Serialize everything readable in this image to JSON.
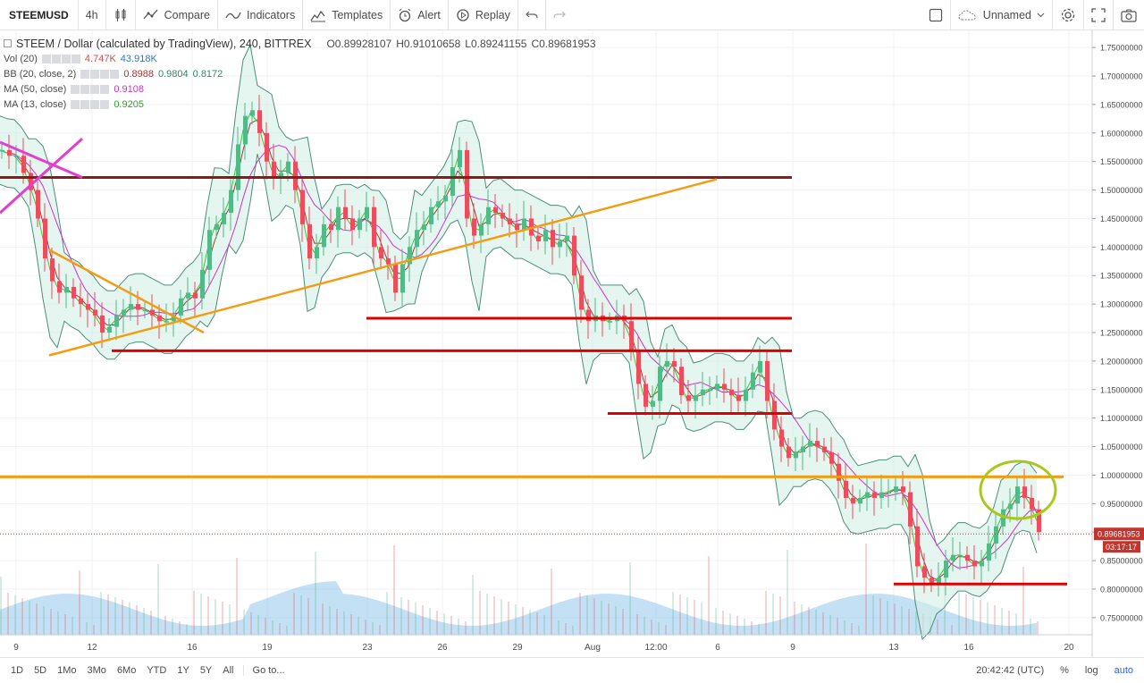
{
  "toolbar": {
    "symbol": "STEEMUSD",
    "interval": "4h",
    "compare_label": "Compare",
    "indicators_label": "Indicators",
    "templates_label": "Templates",
    "alert_label": "Alert",
    "replay_label": "Replay",
    "layout_name": "Unnamed"
  },
  "legend": {
    "title": "STEEM / Dollar (calculated by TradingView), 240, BITTREX",
    "ohlc": {
      "o": "O0.89928107",
      "h": "H0.91010658",
      "l": "L0.89241155",
      "c": "C0.89681953"
    },
    "vol": {
      "label": "Vol (20)",
      "v1": "4.747K",
      "v2": "43.918K"
    },
    "bb": {
      "label": "BB (20, close, 2)",
      "v1": "0.8988",
      "v2": "0.9804",
      "v3": "0.8172"
    },
    "ma50": {
      "label": "MA (50, close)",
      "v": "0.9108"
    },
    "ma13": {
      "label": "MA (13, close)",
      "v": "0.9205"
    }
  },
  "bottombar": {
    "ranges": [
      "1D",
      "5D",
      "1Mo",
      "3Mo",
      "6Mo",
      "YTD",
      "1Y",
      "5Y",
      "All"
    ],
    "goto": "Go to...",
    "time": "20:42:42 (UTC)",
    "percent": "%",
    "log": "log",
    "auto": "auto"
  },
  "chart_data": {
    "type": "candlestick",
    "title": "STEEM / Dollar (calculated by TradingView), 240, BITTREX",
    "ylim": [
      0.72,
      1.78
    ],
    "y_ticks": [
      "1.75000000",
      "1.70000000",
      "1.65000000",
      "1.60000000",
      "1.55000000",
      "1.50000000",
      "1.45000000",
      "1.40000000",
      "1.35000000",
      "1.30000000",
      "1.25000000",
      "1.20000000",
      "1.15000000",
      "1.10000000",
      "1.05000000",
      "1.00000000",
      "0.95000000",
      "0.90000000",
      "0.85000000",
      "0.80000000",
      "0.75000000"
    ],
    "x_ticks": [
      "9",
      "12",
      "16",
      "19",
      "23",
      "26",
      "29",
      "Aug",
      "12:00",
      "6",
      "9",
      "13",
      "16",
      "20"
    ],
    "last_price": "0.89681953",
    "countdown": "03:17:17",
    "colors": {
      "up": "#53b987",
      "down": "#eb4d5c",
      "bb_line": "#4a8f7a",
      "bb_fill": "#d3eee6",
      "ma50": "#cc33cc",
      "ma13": "#33cc33",
      "volume": "#7bbbe8",
      "support": "#dd0000",
      "resistance": "#8b1a1a",
      "trend": "#f39c12",
      "circle": "#a8c81c",
      "cross": "#e040d0"
    },
    "price_path": [
      [
        0,
        1.57
      ],
      [
        8,
        1.56
      ],
      [
        16,
        1.56
      ],
      [
        24,
        1.53
      ],
      [
        32,
        1.5
      ],
      [
        40,
        1.45
      ],
      [
        48,
        1.38
      ],
      [
        56,
        1.34
      ],
      [
        64,
        1.32
      ],
      [
        72,
        1.33
      ],
      [
        80,
        1.31
      ],
      [
        88,
        1.3
      ],
      [
        96,
        1.29
      ],
      [
        104,
        1.28
      ],
      [
        112,
        1.25
      ],
      [
        120,
        1.26
      ],
      [
        128,
        1.28
      ],
      [
        136,
        1.29
      ],
      [
        144,
        1.3
      ],
      [
        152,
        1.29
      ],
      [
        160,
        1.29
      ],
      [
        168,
        1.28
      ],
      [
        176,
        1.27
      ],
      [
        184,
        1.27
      ],
      [
        192,
        1.28
      ],
      [
        200,
        1.31
      ],
      [
        208,
        1.32
      ],
      [
        216,
        1.31
      ],
      [
        224,
        1.36
      ],
      [
        232,
        1.43
      ],
      [
        240,
        1.44
      ],
      [
        248,
        1.46
      ],
      [
        256,
        1.5
      ],
      [
        264,
        1.58
      ],
      [
        272,
        1.63
      ],
      [
        280,
        1.64
      ],
      [
        288,
        1.6
      ],
      [
        296,
        1.55
      ],
      [
        304,
        1.52
      ],
      [
        312,
        1.53
      ],
      [
        320,
        1.55
      ],
      [
        328,
        1.5
      ],
      [
        336,
        1.44
      ],
      [
        344,
        1.38
      ],
      [
        352,
        1.4
      ],
      [
        360,
        1.44
      ],
      [
        368,
        1.43
      ],
      [
        376,
        1.47
      ],
      [
        384,
        1.45
      ],
      [
        392,
        1.43
      ],
      [
        400,
        1.45
      ],
      [
        408,
        1.47
      ],
      [
        416,
        1.4
      ],
      [
        424,
        1.38
      ],
      [
        432,
        1.37
      ],
      [
        440,
        1.32
      ],
      [
        448,
        1.37
      ],
      [
        456,
        1.4
      ],
      [
        464,
        1.43
      ],
      [
        472,
        1.44
      ],
      [
        480,
        1.47
      ],
      [
        488,
        1.48
      ],
      [
        496,
        1.49
      ],
      [
        504,
        1.54
      ],
      [
        512,
        1.57
      ],
      [
        520,
        1.45
      ],
      [
        528,
        1.42
      ],
      [
        536,
        1.44
      ],
      [
        544,
        1.47
      ],
      [
        552,
        1.46
      ],
      [
        560,
        1.45
      ],
      [
        568,
        1.44
      ],
      [
        576,
        1.43
      ],
      [
        584,
        1.45
      ],
      [
        592,
        1.42
      ],
      [
        600,
        1.41
      ],
      [
        608,
        1.43
      ],
      [
        616,
        1.4
      ],
      [
        624,
        1.41
      ],
      [
        632,
        1.42
      ],
      [
        640,
        1.35
      ],
      [
        648,
        1.29
      ],
      [
        656,
        1.27
      ],
      [
        664,
        1.28
      ],
      [
        672,
        1.27
      ],
      [
        680,
        1.27
      ],
      [
        688,
        1.28
      ],
      [
        696,
        1.27
      ],
      [
        704,
        1.22
      ],
      [
        712,
        1.16
      ],
      [
        720,
        1.12
      ],
      [
        728,
        1.13
      ],
      [
        736,
        1.19
      ],
      [
        744,
        1.2
      ],
      [
        752,
        1.19
      ],
      [
        760,
        1.14
      ],
      [
        768,
        1.13
      ],
      [
        776,
        1.14
      ],
      [
        784,
        1.15
      ],
      [
        792,
        1.15
      ],
      [
        800,
        1.16
      ],
      [
        808,
        1.15
      ],
      [
        816,
        1.14
      ],
      [
        824,
        1.13
      ],
      [
        832,
        1.15
      ],
      [
        840,
        1.18
      ],
      [
        848,
        1.2
      ],
      [
        856,
        1.13
      ],
      [
        864,
        1.08
      ],
      [
        872,
        1.05
      ],
      [
        880,
        1.03
      ],
      [
        888,
        1.04
      ],
      [
        896,
        1.05
      ],
      [
        904,
        1.06
      ],
      [
        912,
        1.05
      ],
      [
        920,
        1.04
      ],
      [
        928,
        1.02
      ],
      [
        936,
        0.99
      ],
      [
        944,
        0.96
      ],
      [
        952,
        0.95
      ],
      [
        960,
        0.96
      ],
      [
        968,
        0.97
      ],
      [
        976,
        0.96
      ],
      [
        984,
        0.97
      ],
      [
        992,
        0.97
      ],
      [
        1000,
        0.98
      ],
      [
        1008,
        0.97
      ],
      [
        1016,
        0.91
      ],
      [
        1024,
        0.84
      ],
      [
        1032,
        0.82
      ],
      [
        1040,
        0.81
      ],
      [
        1048,
        0.82
      ],
      [
        1056,
        0.85
      ],
      [
        1064,
        0.86
      ],
      [
        1072,
        0.86
      ],
      [
        1080,
        0.85
      ],
      [
        1088,
        0.84
      ],
      [
        1096,
        0.85
      ],
      [
        1104,
        0.88
      ],
      [
        1112,
        0.91
      ],
      [
        1120,
        0.94
      ],
      [
        1128,
        0.95
      ],
      [
        1136,
        0.98
      ],
      [
        1144,
        0.96
      ],
      [
        1152,
        0.94
      ],
      [
        1160,
        0.9
      ]
    ],
    "annotations": {
      "horizontal_lines": [
        {
          "y": 1.522,
          "x0": 0,
          "x1": 886,
          "color": "resistance"
        },
        {
          "y": 1.275,
          "x0": 410,
          "x1": 886,
          "color": "support"
        },
        {
          "y": 1.218,
          "x0": 125,
          "x1": 886,
          "color": "support"
        },
        {
          "y": 1.108,
          "x0": 680,
          "x1": 886,
          "color": "support"
        },
        {
          "y": 0.997,
          "x0": 0,
          "x1": 1190,
          "color": "trend"
        },
        {
          "y": 0.809,
          "x0": 1000,
          "x1": 1194,
          "color": "support"
        }
      ],
      "trend_lines": [
        {
          "p0": [
            55,
            1.21
          ],
          "p1": [
            802,
            1.519
          ]
        },
        {
          "p0": [
            55,
            1.395
          ],
          "p1": [
            228,
            1.25
          ]
        }
      ]
    }
  }
}
